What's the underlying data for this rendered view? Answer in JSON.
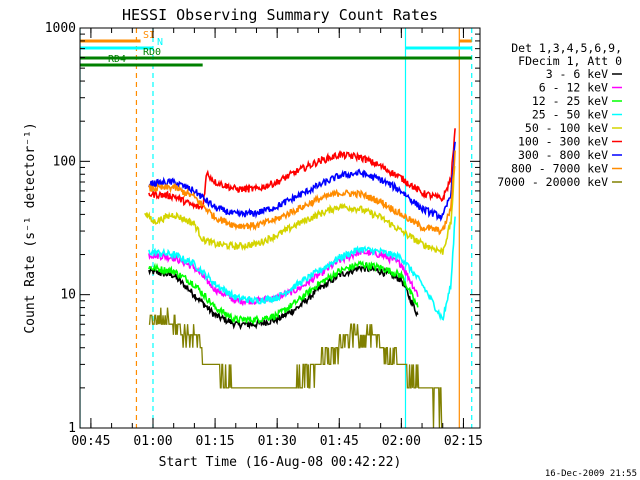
{
  "chart_data": {
    "type": "line",
    "title": "HESSI Observing Summary Count Rates",
    "xlabel": "Start Time (16-Aug-08 00:42:22)",
    "ylabel": "Count Rate (s⁻¹ detector⁻¹)",
    "y_scale": "log",
    "ylim": [
      1,
      1000
    ],
    "xlim": [
      "00:42:22",
      "02:19:00"
    ],
    "x_ticks": [
      "00:45",
      "01:00",
      "01:15",
      "01:30",
      "01:45",
      "02:00",
      "02:15"
    ],
    "y_ticks": [
      "1",
      "10",
      "100",
      "1000"
    ],
    "legend": {
      "placement": "right",
      "header": [
        "Det 1,3,4,5,6,9,",
        "FDecim 1, Att 0"
      ]
    },
    "series": [
      {
        "name": "3 - 6 keV",
        "color": "#000000",
        "x": [
          "00:59",
          "01:05",
          "01:10",
          "01:15",
          "01:20",
          "01:25",
          "01:30",
          "01:35",
          "01:40",
          "01:45",
          "01:50",
          "01:55",
          "02:00",
          "02:04"
        ],
        "y": [
          15,
          14,
          10,
          7,
          6,
          6,
          6.5,
          8,
          11,
          14,
          16,
          15,
          13,
          7
        ]
      },
      {
        "name": "6 - 12 keV",
        "color": "#ff00ff",
        "x": [
          "00:59",
          "01:05",
          "01:10",
          "01:15",
          "01:20",
          "01:25",
          "01:30",
          "01:35",
          "01:40",
          "01:45",
          "01:50",
          "01:55",
          "02:00",
          "02:04"
        ],
        "y": [
          20,
          19,
          16,
          11,
          9,
          9,
          9.5,
          11,
          14,
          18,
          21,
          20,
          17,
          10
        ]
      },
      {
        "name": "12 - 25 keV",
        "color": "#00ff00",
        "x": [
          "00:59",
          "01:05",
          "01:10",
          "01:15",
          "01:20",
          "01:25",
          "01:30",
          "01:35",
          "01:40",
          "01:45",
          "01:50",
          "01:55",
          "02:00",
          "02:04"
        ],
        "y": [
          16,
          15,
          12,
          8,
          6.5,
          6.5,
          7,
          9,
          12,
          15,
          17,
          16,
          14,
          8
        ]
      },
      {
        "name": "25 - 50 keV",
        "color": "#00ffff",
        "x": [
          "00:59",
          "01:05",
          "01:10",
          "01:15",
          "01:20",
          "01:25",
          "01:30",
          "01:35",
          "01:40",
          "01:45",
          "01:50",
          "01:55",
          "02:00",
          "02:05",
          "02:10",
          "02:12",
          "02:13"
        ],
        "y": [
          21,
          20,
          17,
          12,
          9.5,
          9,
          9.5,
          12,
          15,
          19,
          22,
          21,
          19,
          12,
          6.5,
          12,
          40
        ]
      },
      {
        "name": "50 - 100 keV",
        "color": "#d4d400",
        "x": [
          "00:58",
          "01:00",
          "01:05",
          "01:10",
          "01:12",
          "01:15",
          "01:20",
          "01:25",
          "01:30",
          "01:35",
          "01:40",
          "01:45",
          "01:50",
          "01:55",
          "02:00",
          "02:05",
          "02:10",
          "02:12",
          "02:13"
        ],
        "y": [
          42,
          35,
          40,
          34,
          26,
          24,
          23,
          24,
          28,
          34,
          40,
          46,
          44,
          38,
          30,
          24,
          21,
          35,
          100
        ]
      },
      {
        "name": "100 - 300 keV",
        "color": "#ff0000",
        "x": [
          "00:59",
          "01:05",
          "01:10",
          "01:12",
          "01:13",
          "01:15",
          "01:20",
          "01:25",
          "01:30",
          "01:35",
          "01:40",
          "01:45",
          "01:50",
          "01:55",
          "02:00",
          "02:05",
          "02:10",
          "02:12",
          "02:13"
        ],
        "y": [
          57,
          55,
          46,
          45,
          82,
          70,
          62,
          62,
          70,
          85,
          100,
          112,
          108,
          92,
          75,
          58,
          52,
          75,
          170
        ]
      },
      {
        "name": "300 - 800 keV",
        "color": "#0000ff",
        "x": [
          "00:59",
          "01:05",
          "01:10",
          "01:15",
          "01:20",
          "01:25",
          "01:30",
          "01:35",
          "01:40",
          "01:45",
          "01:50",
          "01:55",
          "02:00",
          "02:05",
          "02:10",
          "02:12",
          "02:13"
        ],
        "y": [
          68,
          70,
          60,
          45,
          40,
          41,
          46,
          55,
          66,
          78,
          82,
          73,
          60,
          44,
          38,
          58,
          140
        ]
      },
      {
        "name": "800 - 7000 keV",
        "color": "#ff8c00",
        "x": [
          "00:59",
          "01:05",
          "01:10",
          "01:15",
          "01:20",
          "01:25",
          "01:30",
          "01:35",
          "01:40",
          "01:45",
          "01:50",
          "01:55",
          "02:00",
          "02:05",
          "02:10",
          "02:12",
          "02:13"
        ],
        "y": [
          62,
          64,
          54,
          38,
          33,
          33,
          37,
          44,
          52,
          58,
          57,
          50,
          40,
          32,
          30,
          45,
          120
        ]
      },
      {
        "name": "7000 - 20000 keV",
        "color": "#808000",
        "x": [
          "00:59",
          "01:02",
          "01:05",
          "01:08",
          "01:10",
          "01:13",
          "01:15",
          "01:20",
          "01:25",
          "01:30",
          "01:33",
          "01:36",
          "01:40",
          "01:45",
          "01:48",
          "01:52",
          "01:55",
          "02:00",
          "02:05",
          "02:10"
        ],
        "y": [
          6.5,
          6.5,
          6.5,
          5,
          5,
          3,
          3,
          2,
          2,
          2,
          2,
          2.5,
          3,
          4,
          5,
          5,
          4,
          3,
          2,
          1.5
        ]
      }
    ],
    "annotations": [
      {
        "label": "SI",
        "color": "#ff8c00",
        "segments": [
          [
            "00:42:22",
            "00:57"
          ],
          [
            "02:14",
            "02:17"
          ]
        ]
      },
      {
        "label": "N",
        "color": "#00ffff",
        "segments": [
          [
            "00:42:22",
            "01:00"
          ],
          [
            "02:01",
            "02:17"
          ]
        ]
      },
      {
        "label": "RD0",
        "color": "#008000",
        "segments": [
          [
            "00:42:22",
            "02:17"
          ]
        ]
      },
      {
        "label": "RD4",
        "color": "#008000",
        "segments": [
          [
            "00:42:22",
            "01:12"
          ]
        ]
      }
    ],
    "vlines": [
      {
        "x": "00:42:22",
        "color": "#00ffff",
        "style": "solid"
      },
      {
        "x": "00:56",
        "color": "#ff8c00",
        "style": "dashed"
      },
      {
        "x": "01:00",
        "color": "#00ffff",
        "style": "dashed"
      },
      {
        "x": "02:01",
        "color": "#00ffff",
        "style": "solid"
      },
      {
        "x": "02:14",
        "color": "#ff8c00",
        "style": "solid"
      },
      {
        "x": "02:17",
        "color": "#00ffff",
        "style": "dashed"
      }
    ],
    "grid": false
  },
  "footer": {
    "timestamp": "16-Dec-2009 21:55"
  }
}
